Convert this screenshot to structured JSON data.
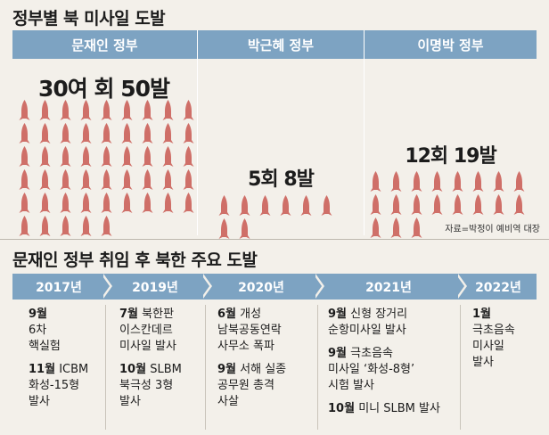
{
  "section1": {
    "title": "정부별 북 미사일 도발"
  },
  "governments": [
    {
      "name": "문재인 정부",
      "count": "30여 회 50발",
      "rockets": 50
    },
    {
      "name": "박근혜 정부",
      "count": "5회 8발",
      "rockets": 8
    },
    {
      "name": "이명박 정부",
      "count": "12회 19발",
      "rockets": 19
    }
  ],
  "source": "자료=박정이 예비역 대장",
  "section2": {
    "title": "문재인 정부 취임 후 북한 주요 도발"
  },
  "years": [
    "2017년",
    "2019년",
    "2020년",
    "2021년",
    "2022년"
  ],
  "events": {
    "y2017": [
      {
        "month": "9월",
        "lines": [
          "6차",
          "핵실험"
        ]
      },
      {
        "month": "11월",
        "first": "ICBM",
        "lines": [
          "화성-15형",
          "발사"
        ]
      }
    ],
    "y2019": [
      {
        "month": "7월",
        "first": "북한판",
        "lines": [
          "이스칸데르",
          "미사일 발사"
        ]
      },
      {
        "month": "10월",
        "first": "SLBM",
        "lines": [
          "북극성 3형",
          "발사"
        ]
      }
    ],
    "y2020": [
      {
        "month": "6월",
        "first": "개성",
        "lines": [
          "남북공동연락",
          "사무소 폭파"
        ]
      },
      {
        "month": "9월",
        "first": "서해 실종",
        "lines": [
          "공무원 총격",
          "사살"
        ]
      }
    ],
    "y2021": [
      {
        "month": "9월",
        "first": "신형 장거리",
        "lines": [
          "순항미사일 발사"
        ]
      },
      {
        "month": "9월",
        "first": "극초음속",
        "lines": [
          "미사일 ‘화성-8형’",
          "시험 발사"
        ]
      },
      {
        "month": "10월",
        "first": "미니 SLBM 발사",
        "lines": []
      }
    ],
    "y2022": [
      {
        "month": "1월",
        "lines": [
          "극초음속",
          "미사일",
          "발사"
        ]
      }
    ]
  },
  "colors": {
    "accent": "#7da3c2",
    "rocket": "#cf6f68",
    "background": "#f3f0ea"
  }
}
